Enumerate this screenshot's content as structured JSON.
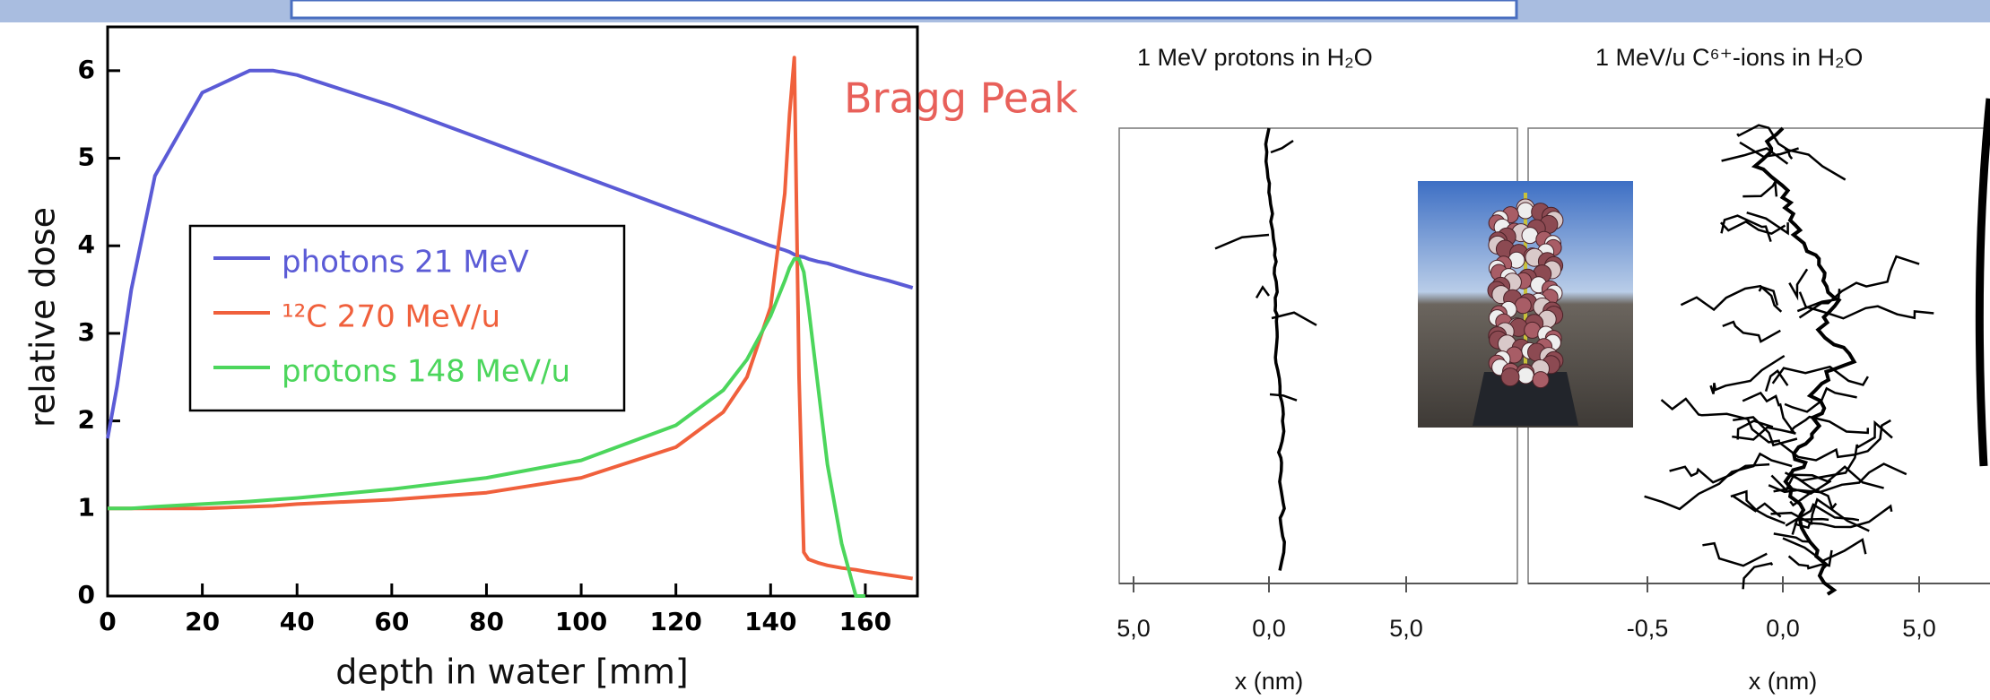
{
  "chart_data": {
    "type": "line",
    "xlabel": "depth in water [mm]",
    "ylabel": "relative dose",
    "annotation": "Bragg Peak",
    "x": [
      0,
      2,
      5,
      10,
      20,
      30,
      35,
      40,
      60,
      80,
      100,
      120,
      130,
      135,
      140,
      143,
      144,
      145,
      146,
      147,
      148,
      150,
      152,
      155,
      158,
      160,
      165,
      170
    ],
    "series": [
      {
        "name": "photons 21 MeV",
        "color": "#5b5bd6",
        "values": [
          1.8,
          2.4,
          3.5,
          4.8,
          5.75,
          6.0,
          6.0,
          5.95,
          5.6,
          5.2,
          4.8,
          4.4,
          4.2,
          4.1,
          4.0,
          3.95,
          3.93,
          3.9,
          3.88,
          3.87,
          3.85,
          3.82,
          3.8,
          3.75,
          3.7,
          3.67,
          3.6,
          3.52
        ]
      },
      {
        "name": "¹²C 270 MeV/u",
        "color": "#f0603c",
        "values": [
          1.0,
          1.0,
          1.0,
          1.0,
          1.0,
          1.02,
          1.03,
          1.05,
          1.1,
          1.18,
          1.35,
          1.7,
          2.1,
          2.5,
          3.3,
          4.6,
          5.5,
          6.15,
          2.5,
          0.5,
          0.42,
          0.38,
          0.35,
          0.32,
          0.3,
          0.28,
          0.24,
          0.2
        ]
      },
      {
        "name": "protons 148 MeV/u",
        "color": "#4cd65c",
        "values": [
          1.0,
          1.0,
          1.0,
          1.02,
          1.05,
          1.08,
          1.1,
          1.12,
          1.22,
          1.35,
          1.55,
          1.95,
          2.35,
          2.7,
          3.2,
          3.6,
          3.75,
          3.85,
          3.85,
          3.7,
          3.3,
          2.4,
          1.5,
          0.6,
          0.0,
          0.0,
          null,
          null
        ]
      }
    ],
    "xlim": [
      0,
      171
    ],
    "xticks": [
      0,
      20,
      40,
      60,
      80,
      100,
      120,
      140,
      160
    ],
    "ylim": [
      0,
      6.5
    ],
    "yticks": [
      0,
      1,
      2,
      3,
      4,
      5,
      6
    ]
  },
  "tracks": {
    "panels": [
      {
        "title": "1 MeV protons in H₂O",
        "ticks": [
          "5,0",
          "0,0",
          "5,0"
        ],
        "xlabel": "x (nm)"
      },
      {
        "title": "1 MeV/u C⁶⁺-ions in H₂O",
        "ticks": [
          "-0,5",
          "0,0",
          "5,0"
        ],
        "xlabel": "x (nm)"
      }
    ]
  }
}
